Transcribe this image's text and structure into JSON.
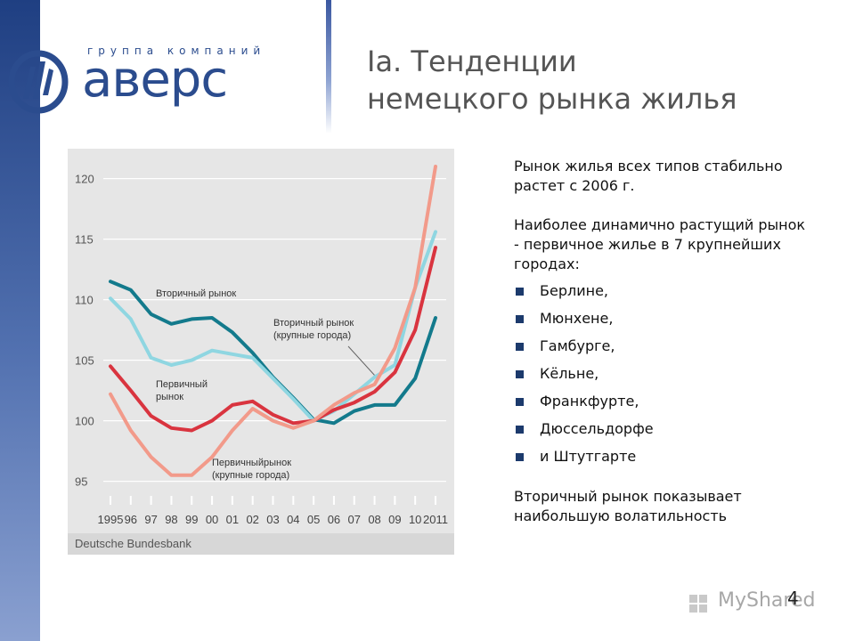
{
  "logo": {
    "small_text": "группа компаний",
    "name": "аверс"
  },
  "title": {
    "line1": "Ia. Тенденции",
    "line2": "немецкого рынка жилья"
  },
  "chart_data": {
    "type": "line",
    "x": [
      "1995",
      "96",
      "97",
      "98",
      "99",
      "00",
      "01",
      "02",
      "03",
      "04",
      "05",
      "06",
      "07",
      "08",
      "09",
      "10",
      "2011"
    ],
    "yticks": [
      95,
      100,
      105,
      110,
      115,
      120
    ],
    "ylim": [
      93,
      122
    ],
    "source": "Deutsche Bundesbank",
    "series": [
      {
        "name": "Вторичный рынок",
        "color": "#137a8c",
        "values": [
          111.5,
          110.8,
          108.8,
          108.0,
          108.4,
          108.5,
          107.3,
          105.6,
          103.6,
          101.9,
          100.1,
          99.8,
          100.8,
          101.3,
          101.3,
          103.5,
          108.5
        ]
      },
      {
        "name": "Вторичный рынок (крупные города)",
        "color": "#8fd6e1",
        "values": [
          110.1,
          108.4,
          105.2,
          104.6,
          105.0,
          105.8,
          105.5,
          105.2,
          103.5,
          101.8,
          100.0,
          100.8,
          102.2,
          103.6,
          104.6,
          111.0,
          115.6
        ]
      },
      {
        "name": "Первичный рынок",
        "color": "#d9343f",
        "values": [
          104.5,
          102.5,
          100.4,
          99.4,
          99.2,
          100.0,
          101.3,
          101.6,
          100.5,
          99.8,
          100.0,
          100.9,
          101.5,
          102.4,
          104.0,
          107.5,
          114.3
        ]
      },
      {
        "name": "Первичныйрынок (крупные города)",
        "color": "#f29a8a",
        "values": [
          102.2,
          99.2,
          97.0,
          95.5,
          95.5,
          97.0,
          99.2,
          101.0,
          100.0,
          99.4,
          100.0,
          101.3,
          102.3,
          103.0,
          106.0,
          111.0,
          121.0
        ]
      }
    ],
    "annotations": [
      {
        "lines": [
          "Вторичный рынок"
        ]
      },
      {
        "lines": [
          "Вторичный рынок",
          "(крупные города)"
        ]
      },
      {
        "lines": [
          "Первичный",
          "рынок"
        ]
      },
      {
        "lines": [
          "Первичныйрынок",
          "(крупные города)"
        ]
      }
    ]
  },
  "text": {
    "p1": "Рынок жилья всех типов стабильно растет с 2006 г.",
    "p2": "Наиболее динамично растущий рынок",
    "p3": "- первичное жилье в 7 крупнейших городах:",
    "cities": [
      "Берлине,",
      "Мюнхене,",
      "Гамбурге,",
      "Кёльне,",
      "Франкфурте,",
      "Дюссельдорфе",
      "и Штутгарте"
    ],
    "p4": "Вторичный рынок показывает наибольшую волатильность"
  },
  "page_number": "4",
  "watermark": "MyShared"
}
